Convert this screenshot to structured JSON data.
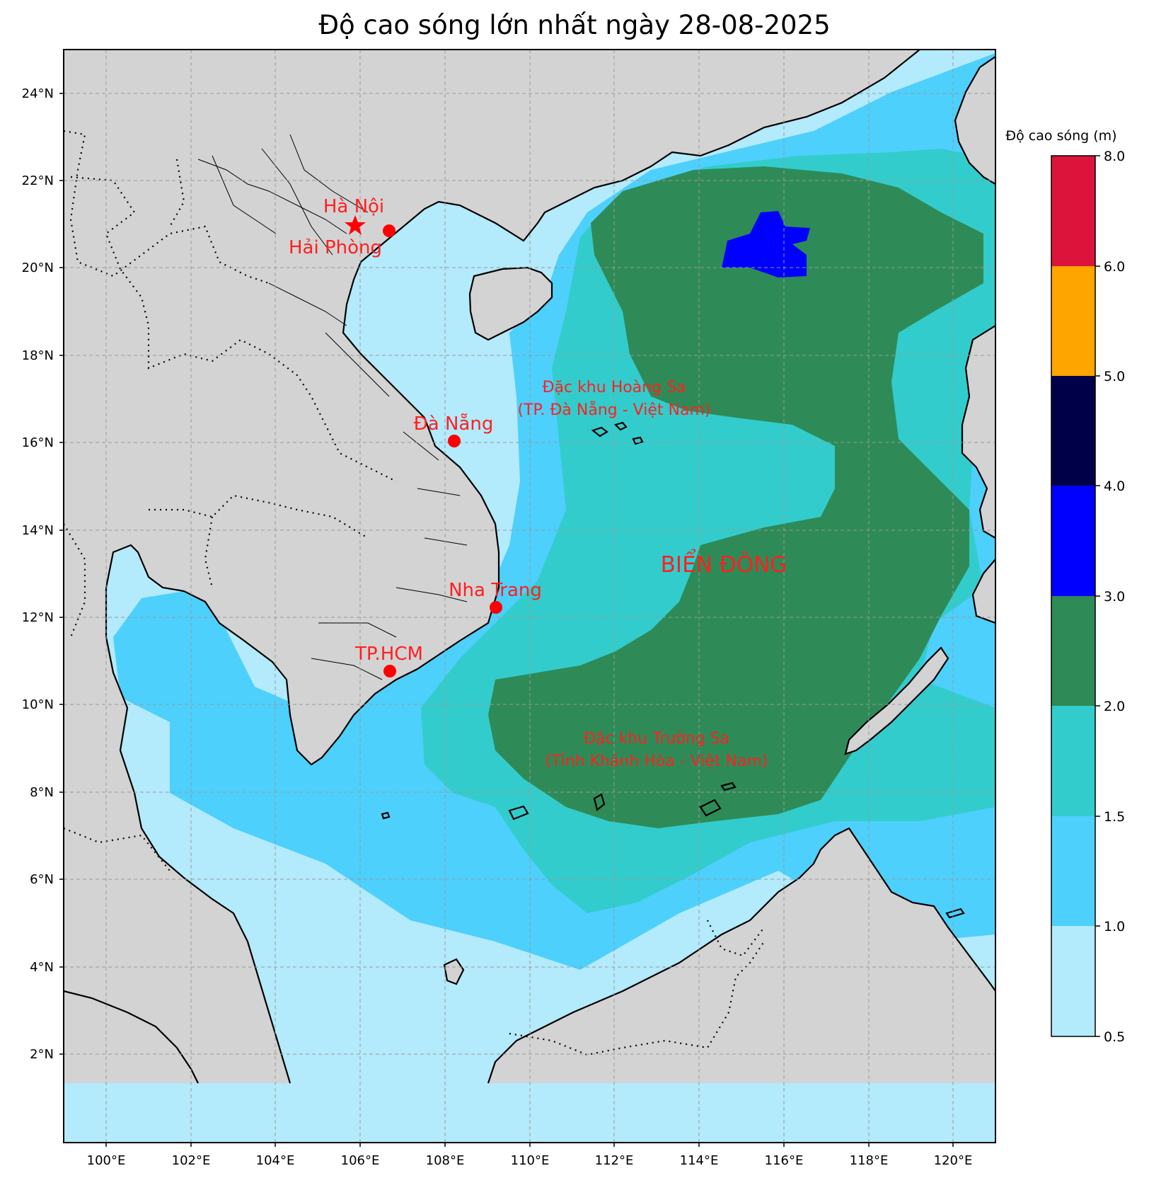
{
  "title": "Độ cao sóng lớn nhất ngày 28-08-2025",
  "colors": {
    "land": "#d3d3d3",
    "h_0_5_1_0": "#b3eafc",
    "h_1_0_1_5": "#4dd0fc",
    "h_1_5_2_0": "#33cccc",
    "h_2_0_3_0": "#2e8b57",
    "h_3_0_4_0": "#0000ff",
    "h_4_0_5_0": "#000048",
    "h_5_0_6_0": "#ffa500",
    "h_6_0_8_0": "#dc143c",
    "marker": "#ff0000"
  },
  "axes": {
    "lon_labels": [
      "100°E",
      "102°E",
      "104°E",
      "106°E",
      "108°E",
      "110°E",
      "112°E",
      "114°E",
      "116°E",
      "118°E",
      "120°E"
    ],
    "lat_labels": [
      "24°N",
      "22°N",
      "20°N",
      "18°N",
      "16°N",
      "14°N",
      "12°N",
      "10°N",
      "8°N",
      "6°N",
      "4°N",
      "2°N"
    ]
  },
  "colorbar": {
    "title": "Độ cao sóng (m)",
    "ticks": [
      "8.0",
      "6.0",
      "5.0",
      "4.0",
      "3.0",
      "2.0",
      "1.5",
      "1.0",
      "0.5"
    ]
  },
  "cities": {
    "ha_noi": "Hà Nội",
    "hai_phong": "Hải Phòng",
    "da_nang": "Đà Nẵng",
    "nha_trang": "Nha Trang",
    "tphcm": "TP.HCM"
  },
  "zones": {
    "hoang_sa_1": "Đặc khu Hoàng Sa",
    "hoang_sa_2": "(TP. Đà Nẵng - Việt Nam)",
    "truong_sa_1": "Đặc khu Trường Sa",
    "truong_sa_2": "(Tỉnh Khánh Hòa - Việt Nam)",
    "bien_dong": "BIỂN ĐÔNG"
  }
}
